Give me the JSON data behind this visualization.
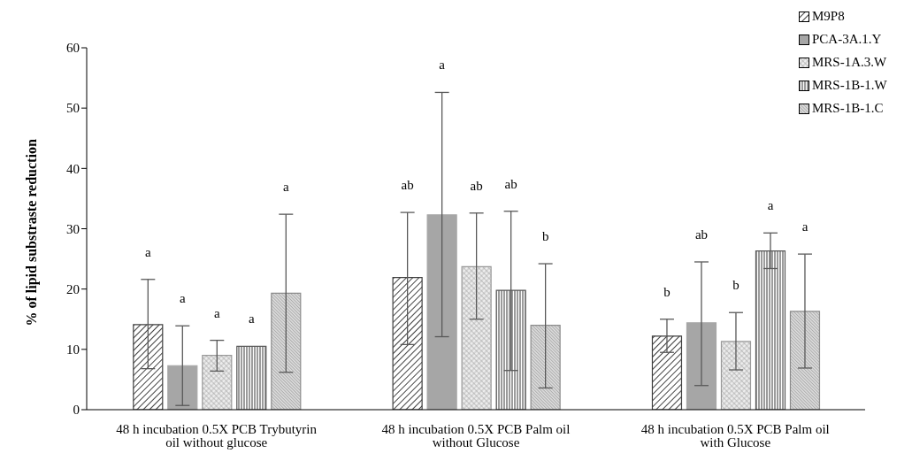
{
  "chart_data": {
    "type": "bar",
    "ylabel": "% of lipid substraste reduction",
    "categories": [
      "48 h incubation 0.5X PCB Trybutyrin oil without glucose",
      "48 h incubation 0.5X PCB Palm oil without Glucose",
      "48 h incubation 0.5X PCB Palm oil with Glucose"
    ],
    "ylim": [
      0,
      60
    ],
    "yticks": [
      0,
      10,
      20,
      30,
      40,
      50,
      60
    ],
    "legend": "top right",
    "grid": false,
    "annotations": [
      "a",
      "a",
      "a",
      "a",
      "a",
      "ab",
      "a",
      "ab",
      "ab",
      "b",
      "b",
      "ab",
      "b",
      "a",
      "a"
    ],
    "series": [
      {
        "name": "M9P8",
        "color": "#404040",
        "values": [
          14.1,
          21.9,
          12.2
        ],
        "errors": [
          [
            6.8,
            21.6
          ],
          [
            10.8,
            32.7
          ],
          [
            9.5,
            15.0
          ]
        ]
      },
      {
        "name": "PCA-3A.1.Y",
        "color": "#a6a6a6",
        "values": [
          7.3,
          32.3,
          14.4
        ],
        "errors": [
          [
            0.7,
            13.9
          ],
          [
            12.1,
            52.6
          ],
          [
            4.0,
            24.5
          ]
        ]
      },
      {
        "name": "MRS-1A.3.W",
        "color": "#9a9a9a",
        "values": [
          9.0,
          23.7,
          11.3
        ],
        "errors": [
          [
            6.4,
            11.5
          ],
          [
            15.0,
            32.6
          ],
          [
            6.6,
            16.1
          ]
        ]
      },
      {
        "name": "MRS-1B-1.W",
        "color": "#595959",
        "values": [
          10.5,
          19.8,
          26.3
        ],
        "errors": [
          null,
          [
            6.5,
            32.9
          ],
          [
            23.4,
            29.3
          ]
        ]
      },
      {
        "name": "MRS-1B-1.C",
        "color": "#8c8c8c",
        "values": [
          19.3,
          14.0,
          16.3
        ],
        "errors": [
          [
            6.2,
            32.4
          ],
          [
            3.6,
            24.2
          ],
          [
            6.9,
            25.8
          ]
        ]
      }
    ]
  }
}
